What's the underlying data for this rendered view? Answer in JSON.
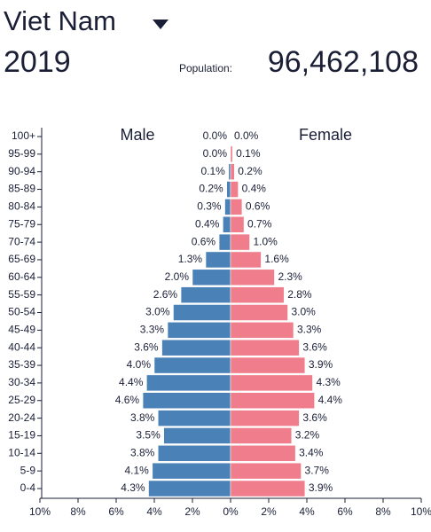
{
  "chart_data": {
    "type": "pyramid",
    "title": "Viet Nam",
    "year": "2019",
    "population_label": "Population:",
    "population": "96,462,108",
    "categories": [
      "100+",
      "95-99",
      "90-94",
      "85-89",
      "80-84",
      "75-79",
      "70-74",
      "65-69",
      "60-64",
      "55-59",
      "50-54",
      "45-49",
      "40-44",
      "35-39",
      "30-34",
      "25-29",
      "20-24",
      "15-19",
      "10-14",
      "5-9",
      "0-4"
    ],
    "series": [
      {
        "name": "Male",
        "color": "#4a82b8",
        "side": "left",
        "values": [
          0.0,
          0.0,
          0.1,
          0.2,
          0.3,
          0.4,
          0.6,
          1.3,
          2.0,
          2.6,
          3.0,
          3.3,
          3.6,
          4.0,
          4.4,
          4.6,
          3.8,
          3.5,
          3.8,
          4.1,
          4.3
        ],
        "value_labels": [
          "0.0%",
          "0.0%",
          "0.1%",
          "0.2%",
          "0.3%",
          "0.4%",
          "0.6%",
          "1.3%",
          "2.0%",
          "2.6%",
          "3.0%",
          "3.3%",
          "3.6%",
          "4.0%",
          "4.4%",
          "4.6%",
          "3.8%",
          "3.5%",
          "3.8%",
          "4.1%",
          "4.3%"
        ]
      },
      {
        "name": "Female",
        "color": "#f07d8c",
        "side": "right",
        "values": [
          0.0,
          0.1,
          0.2,
          0.4,
          0.6,
          0.7,
          1.0,
          1.6,
          2.3,
          2.8,
          3.0,
          3.3,
          3.6,
          3.9,
          4.3,
          4.4,
          3.6,
          3.2,
          3.4,
          3.7,
          3.9
        ],
        "value_labels": [
          "0.0%",
          "0.1%",
          "0.2%",
          "0.4%",
          "0.6%",
          "0.7%",
          "1.0%",
          "1.6%",
          "2.3%",
          "2.8%",
          "3.0%",
          "3.3%",
          "3.6%",
          "3.9%",
          "4.3%",
          "4.4%",
          "3.6%",
          "3.2%",
          "3.4%",
          "3.7%",
          "3.9%"
        ]
      }
    ],
    "xlim": [
      -10,
      10
    ],
    "xticks": [
      {
        "value": -10,
        "label": "10%"
      },
      {
        "value": -8,
        "label": "8%"
      },
      {
        "value": -6,
        "label": "6%"
      },
      {
        "value": -4,
        "label": "4%"
      },
      {
        "value": -2,
        "label": "2%"
      },
      {
        "value": 0,
        "label": "0%"
      },
      {
        "value": 2,
        "label": "2%"
      },
      {
        "value": 4,
        "label": "4%"
      },
      {
        "value": 6,
        "label": "6%"
      },
      {
        "value": 8,
        "label": "8%"
      },
      {
        "value": 10,
        "label": "10%"
      }
    ]
  }
}
